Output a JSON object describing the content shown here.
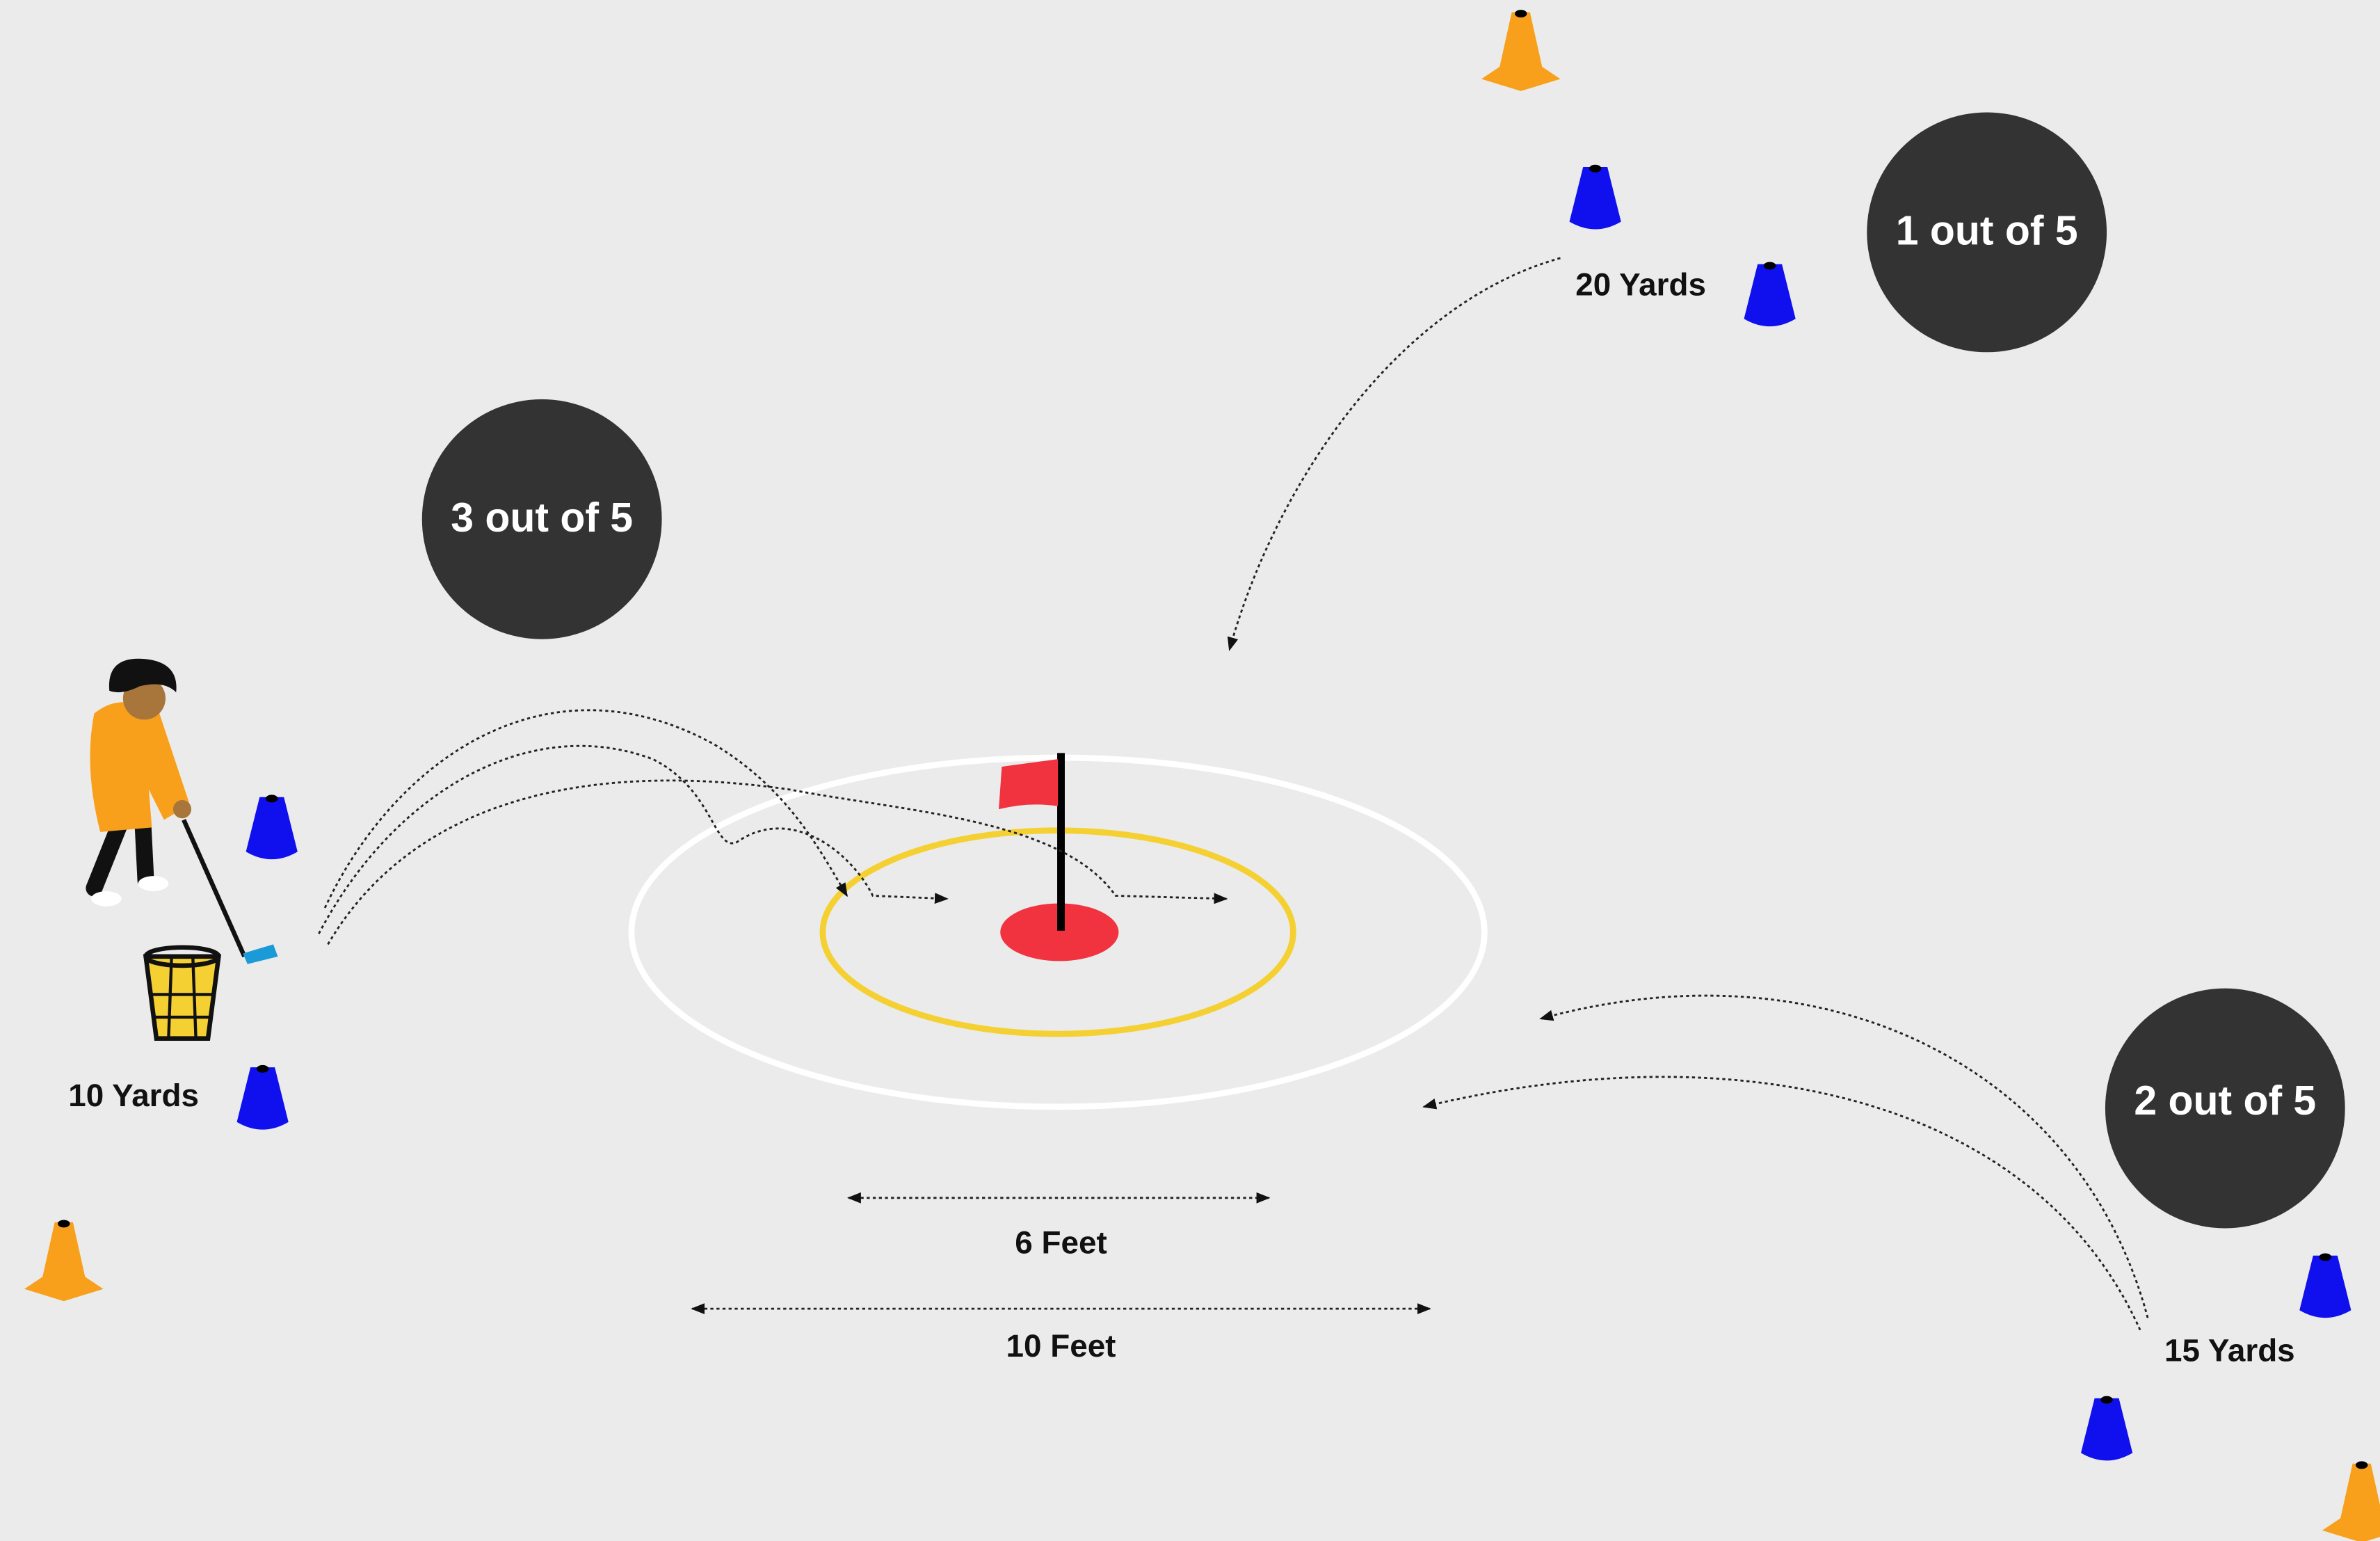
{
  "scores": {
    "left": "3 out of 5",
    "top_right": "1 out of 5",
    "bottom_right": "2 out of 5"
  },
  "distances": {
    "near": "10 Yards",
    "far": "20 Yards",
    "mid": "15 Yards"
  },
  "measures": {
    "inner": "6 Feet",
    "outer": "10 Feet"
  }
}
